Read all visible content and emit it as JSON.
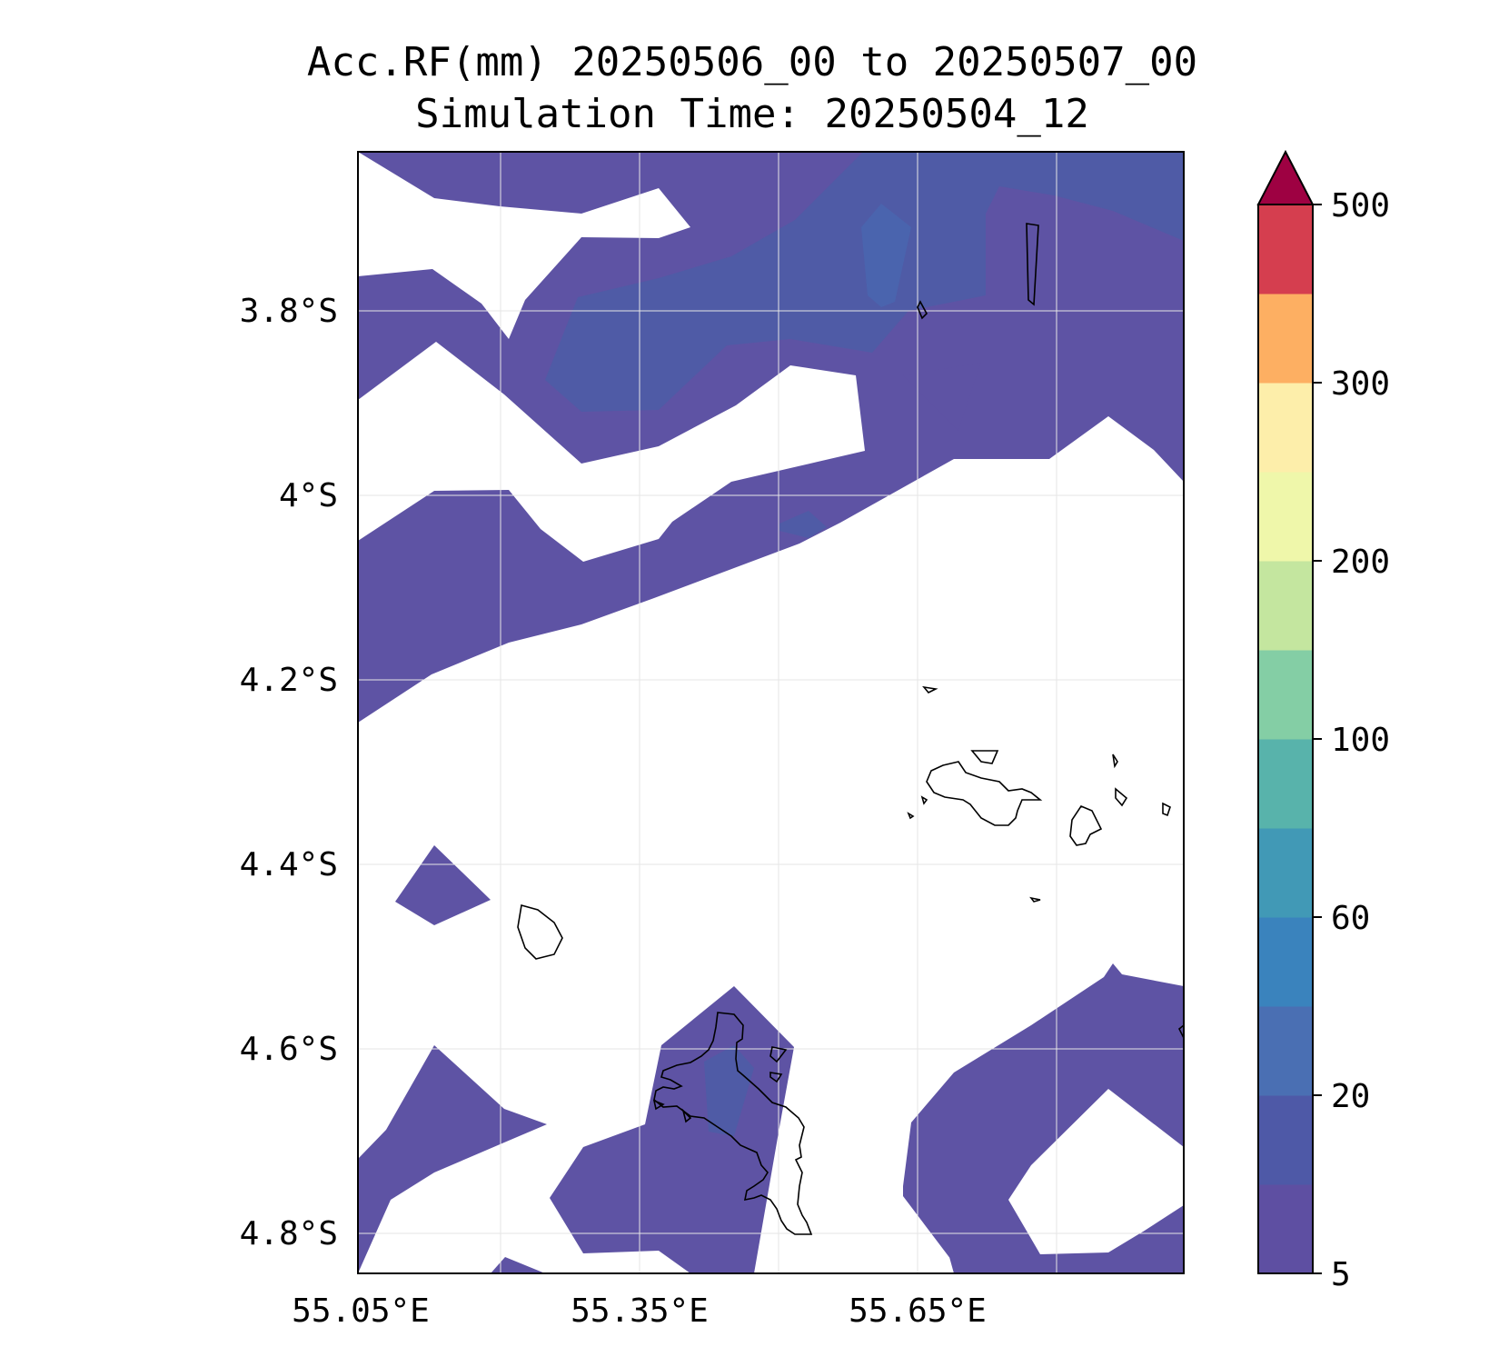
{
  "figure": {
    "title_line1": "Acc.RF(mm) 20250506_00 to 20250507_00",
    "title_line2": "Simulation Time: 20250504_12"
  },
  "map": {
    "lon_range": [
      55.05,
      55.94
    ],
    "lat_range": [
      -4.84,
      -3.63
    ],
    "lon_ticks": [
      {
        "value": 55.05,
        "label": "55.05°E"
      },
      {
        "value": 55.35,
        "label": "55.35°E"
      },
      {
        "value": 55.65,
        "label": "55.65°E"
      }
    ],
    "lat_ticks": [
      {
        "value": -3.8,
        "label": "3.8°S"
      },
      {
        "value": -4.0,
        "label": "4°S"
      },
      {
        "value": -4.2,
        "label": "4.2°S"
      },
      {
        "value": -4.4,
        "label": "4.4°S"
      },
      {
        "value": -4.6,
        "label": "4.6°S"
      },
      {
        "value": -4.8,
        "label": "4.8°S"
      }
    ],
    "grid": true,
    "fill_colors": {
      "band_5_10": "#5e53a4",
      "band_10_20": "#4f5ba6"
    }
  },
  "colorbar": {
    "extend": "max",
    "extend_color": "#9e0142",
    "levels": [
      5,
      10,
      20,
      40,
      60,
      80,
      100,
      150,
      200,
      250,
      300,
      400,
      500
    ],
    "colors": [
      "#5e4fa2",
      "#4e59a7",
      "#4a6fb3",
      "#3a83bd",
      "#4199b6",
      "#58b3ab",
      "#84cea5",
      "#c4e69f",
      "#eff7aa",
      "#fdeeaa",
      "#fdaf62",
      "#d53e4f"
    ],
    "tick_labels": [
      {
        "value": "5",
        "index": 0
      },
      {
        "value": "20",
        "index": 2
      },
      {
        "value": "60",
        "index": 4
      },
      {
        "value": "100",
        "index": 6
      },
      {
        "value": "200",
        "index": 8
      },
      {
        "value": "300",
        "index": 10
      },
      {
        "value": "500",
        "index": 12
      }
    ]
  }
}
